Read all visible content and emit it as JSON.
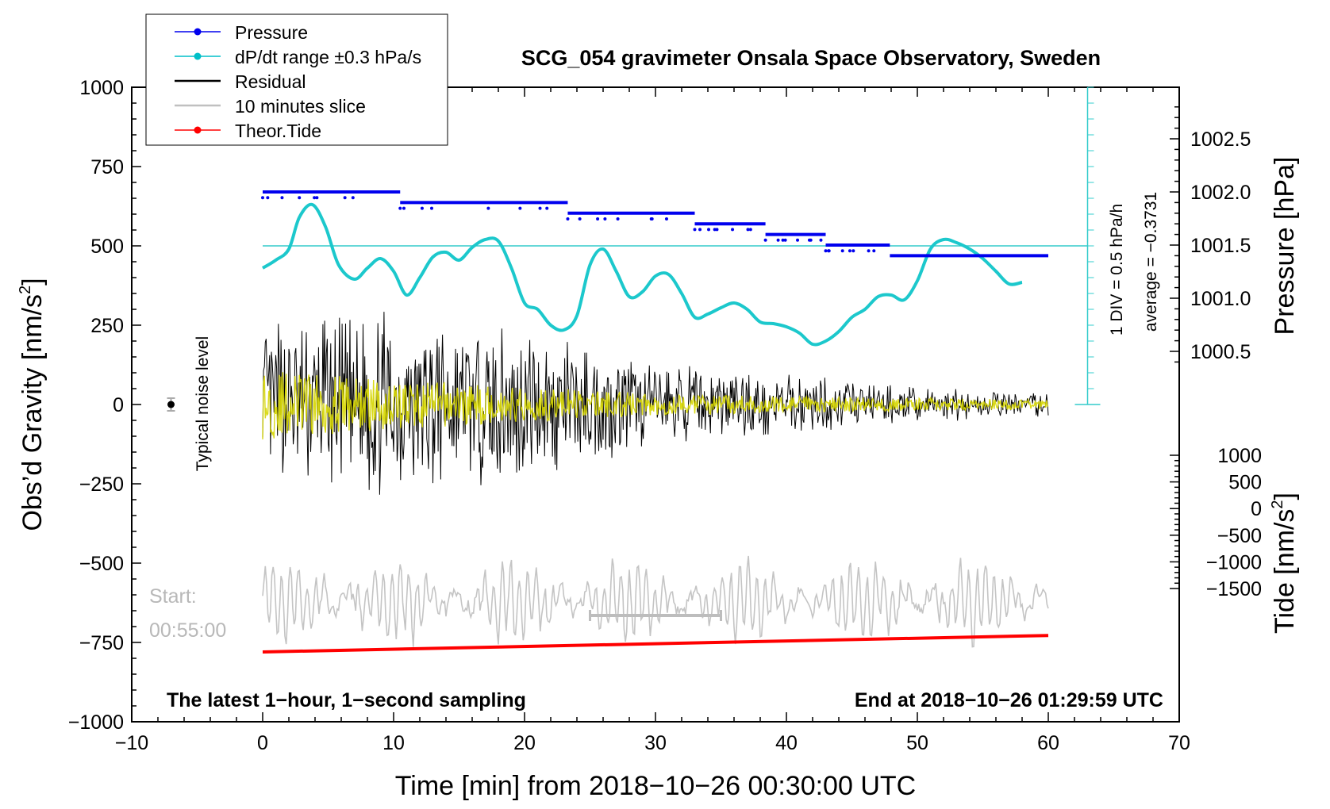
{
  "chart_data": {
    "type": "line",
    "title": "SCG_054 gravimeter Onsala Space Observatory, Sweden",
    "xlabel": "Time [min] from 2018−10−26 00:30:00 UTC",
    "ylabel_left": "Obs’d Gravity [nm/s",
    "ylabel_left_sup": "2",
    "ylabel_left_tail": "]",
    "ylabel_right_pressure": "Pressure [hPa]",
    "ylabel_right_tide": "Tide [nm/s",
    "ylabel_right_tide_sup": "2",
    "ylabel_right_tide_tail": "]",
    "xlim": [
      -10,
      70
    ],
    "ylim_left": [
      -1000,
      1000
    ],
    "x_ticks": [
      "−10",
      "0",
      "10",
      "20",
      "30",
      "40",
      "50",
      "60",
      "70"
    ],
    "left_ticks": [
      "1000",
      "750",
      "500",
      "250",
      "0",
      "−250",
      "−500",
      "−750",
      "−1000"
    ],
    "pressure_ticks": [
      "1002.5",
      "1002.0",
      "1001.5",
      "1001.0",
      "1000.5"
    ],
    "pressure_ticks_values": [
      1002.5,
      1002.0,
      1001.5,
      1001.0,
      1000.5
    ],
    "tide_ticks": [
      "1000",
      "500",
      "0",
      "−500",
      "−1000",
      "−1500"
    ],
    "tide_ticks_values": [
      1000,
      500,
      0,
      -500,
      -1000,
      -1500
    ],
    "legend_position": "top-left",
    "legend": [
      {
        "label": "Pressure",
        "color": "#0000ee",
        "marker": "dot"
      },
      {
        "label": "dP/dt range ±0.3 hPa/s",
        "color": "#00bfc8",
        "marker": "dot"
      },
      {
        "label": "Residual",
        "color": "#000000",
        "marker": "none"
      },
      {
        "label": "10 minutes slice",
        "color": "#c0c0c0",
        "marker": "none"
      },
      {
        "label": "Theor.Tide",
        "color": "#ff0000",
        "marker": "dot"
      }
    ],
    "annotations": {
      "noise_level": "Typical noise level",
      "start_label": "Start:",
      "start_time": "00:55:00",
      "bottom_left": "The latest 1−hour, 1−second sampling",
      "bottom_right": "End at 2018−10−26 01:29:59 UTC",
      "scale_div": "1 DIV = 0.5 hPa/h",
      "scale_avg": "average = −0.3731"
    },
    "slice_range_min": [
      25,
      35
    ],
    "noise_bar": {
      "x": -7,
      "y": 0,
      "err": 20
    },
    "pressure_series": {
      "name": "Pressure",
      "segments": [
        {
          "x0": 0,
          "x1": 10.5,
          "hpa": 1002.0
        },
        {
          "x0": 10.5,
          "x1": 23.3,
          "hpa": 1001.9
        },
        {
          "x0": 23.3,
          "x1": 33.0,
          "hpa": 1001.8
        },
        {
          "x0": 33.0,
          "x1": 38.4,
          "hpa": 1001.7
        },
        {
          "x0": 38.4,
          "x1": 43.0,
          "hpa": 1001.6
        },
        {
          "x0": 43.0,
          "x1": 47.9,
          "hpa": 1001.5
        },
        {
          "x0": 47.9,
          "x1": 60.0,
          "hpa": 1001.4
        }
      ]
    },
    "dpdt_series": {
      "name": "dP/dt",
      "x": [
        0,
        1,
        2,
        2.8,
        3.8,
        4.8,
        5.8,
        7,
        8,
        9,
        10,
        11,
        12,
        13,
        14,
        15,
        16,
        17,
        18,
        19,
        20,
        21,
        22,
        23,
        24,
        25,
        26,
        27,
        28,
        29,
        30,
        31,
        32,
        33,
        34,
        35,
        36,
        37,
        38,
        39,
        40,
        41,
        42,
        43,
        44,
        45,
        46,
        47,
        48,
        49,
        50,
        51,
        52,
        53,
        54,
        55,
        56,
        57,
        58
      ],
      "y": [
        430,
        455,
        490,
        590,
        630,
        560,
        440,
        395,
        430,
        460,
        420,
        345,
        400,
        465,
        480,
        455,
        495,
        520,
        515,
        430,
        320,
        300,
        250,
        235,
        280,
        440,
        490,
        420,
        340,
        355,
        405,
        410,
        350,
        275,
        285,
        305,
        320,
        300,
        260,
        255,
        245,
        225,
        190,
        200,
        230,
        275,
        300,
        340,
        345,
        330,
        390,
        490,
        520,
        510,
        490,
        460,
        420,
        380,
        385
      ]
    },
    "dpdt_reference_level": 500,
    "residual_series": {
      "name": "Residual",
      "x_range": [
        0,
        60
      ],
      "amplitude_envelope": [
        [
          0,
          260
        ],
        [
          10,
          300
        ],
        [
          20,
          240
        ],
        [
          30,
          140
        ],
        [
          40,
          100
        ],
        [
          50,
          60
        ],
        [
          60,
          40
        ]
      ]
    },
    "smoothed_residual_series": {
      "name": "Residual (yellow)",
      "x_range": [
        0,
        60
      ],
      "amplitude_envelope": [
        [
          0,
          110
        ],
        [
          10,
          80
        ],
        [
          20,
          55
        ],
        [
          30,
          35
        ],
        [
          40,
          25
        ],
        [
          50,
          20
        ],
        [
          60,
          15
        ]
      ]
    },
    "slice_series": {
      "name": "10 minutes slice",
      "x_range": [
        0,
        60
      ],
      "baseline_nm_s2": -620,
      "amplitude": 110
    },
    "tide_series": {
      "name": "Theor.Tide",
      "x": [
        0,
        60
      ],
      "y_left_axis_nm_s2": [
        -780,
        -728
      ]
    }
  }
}
